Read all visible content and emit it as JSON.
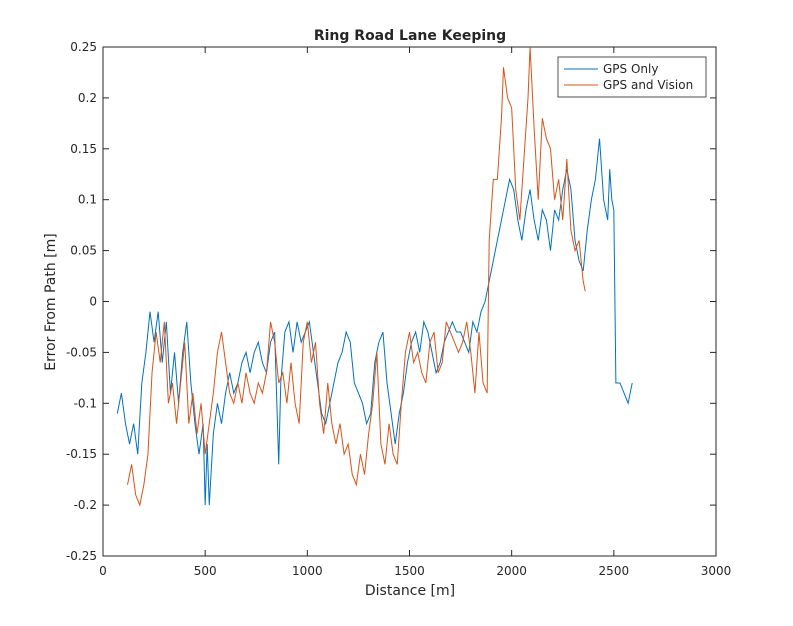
{
  "chart_data": {
    "type": "line",
    "title": "Ring Road Lane Keeping",
    "xlabel": "Distance [m]",
    "ylabel": "Error From Path [m]",
    "xlim": [
      0,
      3000
    ],
    "xticks": [
      0,
      500,
      1000,
      1500,
      2000,
      2500,
      3000
    ],
    "ylim": [
      -0.25,
      0.25
    ],
    "yticks": [
      -0.25,
      -0.2,
      -0.15,
      -0.1,
      -0.05,
      0,
      0.05,
      0.1,
      0.15,
      0.2,
      0.25
    ],
    "legend": "northeast",
    "series": [
      {
        "name": "GPS Only",
        "color": "#0072bd",
        "x": [
          70,
          90,
          110,
          130,
          150,
          170,
          190,
          210,
          230,
          250,
          270,
          290,
          310,
          330,
          350,
          370,
          390,
          410,
          430,
          450,
          470,
          490,
          500,
          510,
          520,
          540,
          560,
          580,
          600,
          620,
          640,
          660,
          680,
          700,
          720,
          740,
          760,
          780,
          800,
          820,
          840,
          860,
          870,
          890,
          910,
          930,
          950,
          970,
          990,
          1010,
          1030,
          1050,
          1070,
          1090,
          1110,
          1130,
          1150,
          1170,
          1190,
          1210,
          1230,
          1250,
          1270,
          1290,
          1310,
          1330,
          1350,
          1370,
          1390,
          1410,
          1430,
          1450,
          1470,
          1490,
          1510,
          1530,
          1550,
          1570,
          1590,
          1610,
          1630,
          1650,
          1670,
          1690,
          1710,
          1730,
          1750,
          1770,
          1790,
          1810,
          1830,
          1850,
          1870,
          1890,
          1910,
          1930,
          1950,
          1970,
          1990,
          2010,
          2030,
          2050,
          2070,
          2090,
          2110,
          2130,
          2150,
          2170,
          2190,
          2210,
          2230,
          2250,
          2270,
          2290,
          2310,
          2330,
          2350,
          2370,
          2390,
          2410,
          2430,
          2450,
          2470,
          2480,
          2490,
          2500,
          2510,
          2530,
          2550,
          2570,
          2590
        ],
        "values": [
          -0.11,
          -0.09,
          -0.12,
          -0.14,
          -0.12,
          -0.15,
          -0.08,
          -0.05,
          -0.01,
          -0.04,
          -0.01,
          -0.06,
          -0.02,
          -0.09,
          -0.05,
          -0.1,
          -0.05,
          -0.02,
          -0.08,
          -0.12,
          -0.15,
          -0.12,
          -0.2,
          -0.14,
          -0.2,
          -0.13,
          -0.1,
          -0.12,
          -0.09,
          -0.07,
          -0.09,
          -0.08,
          -0.06,
          -0.05,
          -0.07,
          -0.05,
          -0.04,
          -0.06,
          -0.07,
          -0.04,
          -0.03,
          -0.16,
          -0.08,
          -0.03,
          -0.02,
          -0.05,
          -0.02,
          -0.04,
          -0.03,
          -0.02,
          -0.05,
          -0.08,
          -0.11,
          -0.12,
          -0.1,
          -0.08,
          -0.06,
          -0.05,
          -0.03,
          -0.04,
          -0.08,
          -0.09,
          -0.1,
          -0.12,
          -0.11,
          -0.06,
          -0.04,
          -0.03,
          -0.08,
          -0.11,
          -0.14,
          -0.11,
          -0.09,
          -0.06,
          -0.04,
          -0.03,
          -0.05,
          -0.02,
          -0.03,
          -0.05,
          -0.07,
          -0.06,
          -0.04,
          -0.03,
          -0.02,
          -0.03,
          -0.03,
          -0.04,
          -0.05,
          -0.02,
          -0.03,
          -0.01,
          0.0,
          0.02,
          0.04,
          0.06,
          0.08,
          0.1,
          0.12,
          0.11,
          0.08,
          0.06,
          0.09,
          0.11,
          0.08,
          0.06,
          0.09,
          0.08,
          0.05,
          0.09,
          0.08,
          0.11,
          0.13,
          0.11,
          0.06,
          0.04,
          0.03,
          0.07,
          0.1,
          0.12,
          0.16,
          0.1,
          0.08,
          0.13,
          0.1,
          0.09,
          -0.08,
          -0.08,
          -0.09,
          -0.1,
          -0.08
        ]
      },
      {
        "name": "GPS and Vision",
        "color": "#d95319",
        "x": [
          120,
          140,
          160,
          180,
          200,
          220,
          240,
          260,
          280,
          300,
          320,
          340,
          360,
          380,
          400,
          420,
          440,
          460,
          480,
          500,
          520,
          540,
          560,
          580,
          600,
          620,
          640,
          660,
          680,
          700,
          720,
          740,
          760,
          780,
          800,
          820,
          840,
          860,
          880,
          900,
          920,
          940,
          960,
          980,
          1000,
          1020,
          1040,
          1060,
          1080,
          1100,
          1120,
          1140,
          1160,
          1180,
          1200,
          1220,
          1240,
          1260,
          1280,
          1300,
          1320,
          1340,
          1360,
          1380,
          1400,
          1420,
          1440,
          1460,
          1480,
          1500,
          1520,
          1540,
          1560,
          1580,
          1600,
          1620,
          1640,
          1660,
          1680,
          1700,
          1720,
          1740,
          1760,
          1780,
          1800,
          1820,
          1840,
          1860,
          1880,
          1890,
          1910,
          1930,
          1950,
          1960,
          1980,
          2000,
          2020,
          2040,
          2060,
          2080,
          2090,
          2110,
          2130,
          2150,
          2170,
          2190,
          2210,
          2230,
          2250,
          2270,
          2290,
          2310,
          2330,
          2350,
          2360
        ],
        "values": [
          -0.18,
          -0.16,
          -0.19,
          -0.2,
          -0.18,
          -0.15,
          -0.07,
          -0.03,
          -0.06,
          -0.02,
          -0.1,
          -0.08,
          -0.12,
          -0.08,
          -0.04,
          -0.12,
          -0.09,
          -0.13,
          -0.1,
          -0.15,
          -0.12,
          -0.09,
          -0.05,
          -0.03,
          -0.06,
          -0.09,
          -0.1,
          -0.08,
          -0.1,
          -0.07,
          -0.09,
          -0.1,
          -0.08,
          -0.09,
          -0.07,
          -0.02,
          -0.04,
          -0.08,
          -0.07,
          -0.1,
          -0.06,
          -0.1,
          -0.12,
          -0.04,
          -0.02,
          -0.06,
          -0.04,
          -0.1,
          -0.13,
          -0.08,
          -0.12,
          -0.14,
          -0.12,
          -0.15,
          -0.14,
          -0.17,
          -0.18,
          -0.15,
          -0.17,
          -0.13,
          -0.1,
          -0.05,
          -0.14,
          -0.16,
          -0.12,
          -0.15,
          -0.16,
          -0.1,
          -0.05,
          -0.03,
          -0.06,
          -0.05,
          -0.07,
          -0.08,
          -0.04,
          -0.03,
          -0.07,
          -0.06,
          -0.02,
          -0.03,
          -0.04,
          -0.05,
          -0.04,
          -0.02,
          -0.05,
          -0.09,
          -0.03,
          -0.08,
          -0.09,
          0.06,
          0.12,
          0.12,
          0.18,
          0.23,
          0.2,
          0.19,
          0.11,
          0.08,
          0.14,
          0.2,
          0.25,
          0.17,
          0.1,
          0.18,
          0.16,
          0.15,
          0.1,
          0.12,
          0.08,
          0.14,
          0.07,
          0.05,
          0.06,
          0.02,
          0.01
        ]
      }
    ]
  }
}
